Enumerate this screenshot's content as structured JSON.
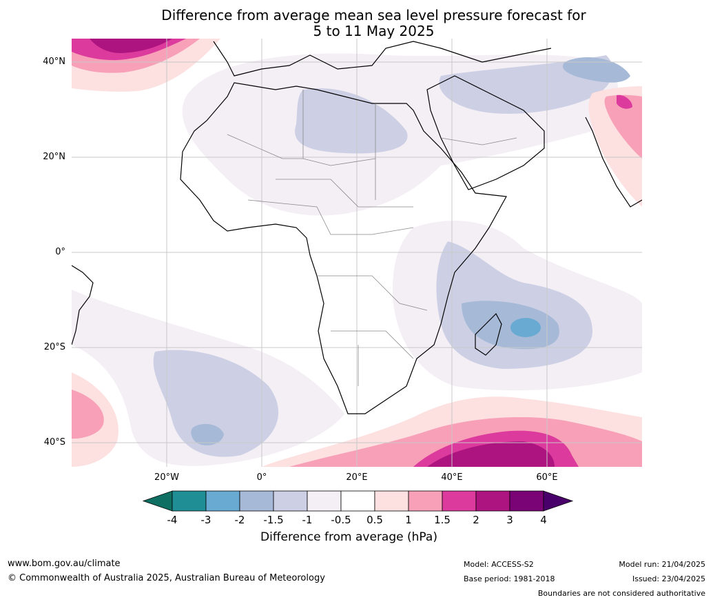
{
  "title_line1": "Difference from average mean sea level pressure forecast for",
  "title_line2": "5 to 11 May 2025",
  "lat_labels": [
    "40°N",
    "20°N",
    "0°",
    "20°S",
    "40°S"
  ],
  "lon_labels": [
    "20°W",
    "0°",
    "20°E",
    "40°E",
    "60°E"
  ],
  "colorbar": {
    "title": "Difference from average (hPa)",
    "ticks": [
      "-4",
      "-3",
      "-2",
      "-1.5",
      "-1",
      "-0.5",
      "0.5",
      "1",
      "1.5",
      "2",
      "3",
      "4"
    ],
    "colors": [
      "#0f6f63",
      "#1f8f95",
      "#69aad2",
      "#a6bad8",
      "#cdd0e5",
      "#f4eef5",
      "#ffffff",
      "#fde0e0",
      "#f8a0b8",
      "#dc3a9c",
      "#ad1480",
      "#7a0376",
      "#4a006a"
    ]
  },
  "footer": {
    "url": "www.bom.gov.au/climate",
    "copyright": "© Commonwealth of Australia 2025, Australian Bureau of Meteorology",
    "model": "Model: ACCESS-S2",
    "base_period": "Base period: 1981-2018",
    "model_run": "Model run: 21/04/2025",
    "issued": "Issued: 23/04/2025",
    "disclaimer": "Boundaries are not considered authoritative"
  }
}
